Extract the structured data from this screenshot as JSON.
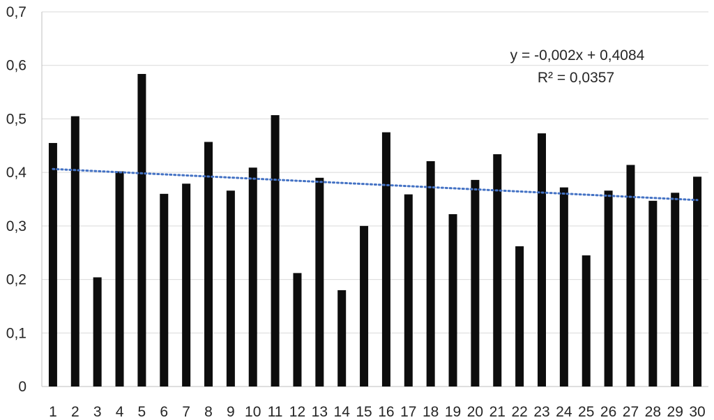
{
  "chart_data": {
    "type": "bar",
    "categories": [
      "1",
      "2",
      "3",
      "4",
      "5",
      "6",
      "7",
      "8",
      "9",
      "10",
      "11",
      "12",
      "13",
      "14",
      "15",
      "16",
      "17",
      "18",
      "19",
      "20",
      "21",
      "22",
      "23",
      "24",
      "25",
      "26",
      "27",
      "28",
      "29",
      "30"
    ],
    "values": [
      0.455,
      0.505,
      0.204,
      0.402,
      0.584,
      0.36,
      0.379,
      0.457,
      0.366,
      0.409,
      0.507,
      0.212,
      0.39,
      0.18,
      0.3,
      0.475,
      0.359,
      0.421,
      0.322,
      0.386,
      0.434,
      0.262,
      0.473,
      0.372,
      0.245,
      0.366,
      0.414,
      0.347,
      0.362,
      0.392
    ],
    "ylim": [
      0,
      0.7
    ],
    "yticks": [
      "0",
      "0,1",
      "0,2",
      "0,3",
      "0,4",
      "0,5",
      "0,6",
      "0,7"
    ],
    "ytick_values": [
      0,
      0.1,
      0.2,
      0.3,
      0.4,
      0.5,
      0.6,
      0.7
    ],
    "grid": true,
    "bar_color": "#0d0d0d",
    "trendline": {
      "type": "linear",
      "slope": -0.002,
      "intercept": 0.4084,
      "color": "#4472c4",
      "style": "dotted",
      "equation_label": "y = -0,002x + 0,4084",
      "r2_label": "R² = 0,0357"
    }
  }
}
